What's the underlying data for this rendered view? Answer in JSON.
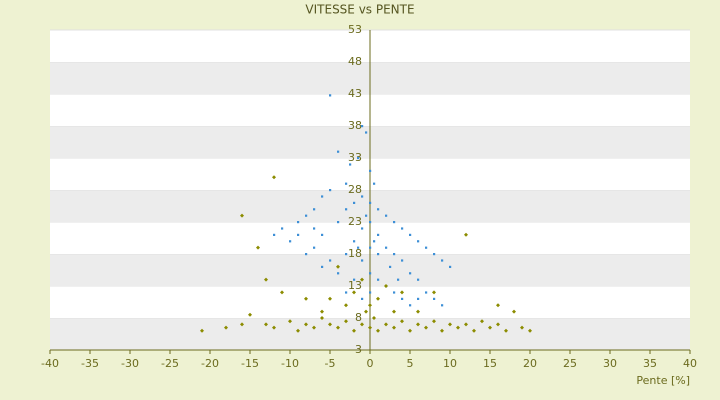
{
  "chart_data": {
    "type": "scatter",
    "title": "VITESSE vs PENTE",
    "x_label": "Pente [%]",
    "xlim": [
      -40,
      40
    ],
    "xticks": [
      -40,
      -35,
      -30,
      -25,
      -20,
      -15,
      -10,
      -5,
      0,
      5,
      10,
      15,
      20,
      25,
      30,
      35,
      40
    ],
    "ylim": [
      3,
      53
    ],
    "yticks": [
      3,
      8,
      13,
      18,
      23,
      28,
      33,
      38,
      43,
      48,
      53
    ],
    "grid": true,
    "series": [
      {
        "color": "#3d8fd6",
        "x": [
          -5,
          -1,
          -0.5,
          -4,
          -2.5,
          -1.5,
          0,
          0.5,
          -3,
          -5,
          -6,
          -7,
          -8,
          -9,
          -11,
          -12,
          -10,
          -7,
          -6,
          -4,
          -3,
          -2,
          -1,
          0,
          1,
          2,
          3,
          4,
          5,
          6,
          7,
          8,
          9,
          10,
          -5,
          -4,
          -3,
          -2,
          -1,
          0,
          1,
          2,
          3,
          4,
          5,
          6,
          7,
          8,
          9,
          -1,
          0,
          1,
          2,
          3,
          4,
          5,
          -2,
          -3,
          0,
          1,
          -0.5,
          0.5,
          -1.5,
          2.5,
          3.5,
          -6,
          -8,
          -9,
          -7,
          6,
          0,
          -1
        ],
        "values": [
          42.8,
          38,
          37,
          34,
          32,
          33,
          31,
          29,
          29,
          28,
          27,
          25,
          24,
          23,
          22,
          21,
          20,
          19,
          21,
          23,
          25,
          26,
          27,
          26,
          25,
          24,
          23,
          22,
          21,
          20,
          19,
          18,
          17,
          16,
          17,
          15,
          18,
          20,
          22,
          23,
          21,
          19,
          18,
          17,
          15,
          14,
          12,
          11,
          10,
          17,
          15,
          14,
          13,
          12,
          11,
          10,
          14,
          12,
          19,
          18,
          24,
          20,
          19,
          16,
          14,
          16,
          18,
          21,
          22,
          11,
          12,
          11
        ]
      },
      {
        "color": "#8c8c00",
        "x": [
          -21,
          -18,
          -16,
          -15,
          -13,
          -12,
          -10,
          -9,
          -8,
          -7,
          -6,
          -5,
          -4,
          -3,
          -2,
          -1,
          0,
          1,
          2,
          3,
          4,
          5,
          6,
          7,
          8,
          9,
          10,
          11,
          12,
          13,
          14,
          15,
          16,
          17,
          19,
          20,
          -16,
          -14,
          -13,
          -11,
          -12,
          -3,
          -2,
          -1,
          0,
          1,
          2,
          3,
          4,
          -5,
          -6,
          12,
          8,
          16,
          -0.5,
          0.5,
          -4,
          -8,
          18,
          6
        ],
        "values": [
          6,
          6.5,
          7,
          8.5,
          7,
          6.5,
          7.5,
          6,
          7,
          6.5,
          8,
          7,
          6.5,
          7.5,
          6,
          7,
          6.5,
          6,
          7,
          6.5,
          7.5,
          6,
          7,
          6.5,
          7.5,
          6,
          7,
          6.5,
          7,
          6,
          7.5,
          6.5,
          7,
          6,
          6.5,
          6,
          24,
          19,
          14,
          12,
          30,
          10,
          12,
          14,
          10,
          11,
          13,
          9,
          12,
          11,
          9,
          21,
          12,
          10,
          9,
          8,
          16,
          11,
          9,
          9
        ]
      }
    ]
  }
}
